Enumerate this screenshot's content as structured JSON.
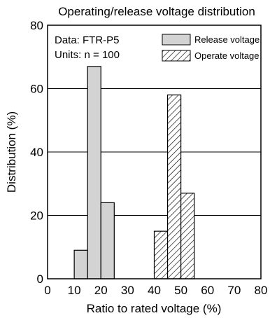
{
  "chart_data": {
    "type": "bar",
    "title": "Operating/release voltage distribution",
    "xlabel": "Ratio to rated voltage (%)",
    "ylabel": "Distribution (%)",
    "xlim": [
      0,
      80
    ],
    "ylim": [
      0,
      80
    ],
    "x_ticks": [
      "0",
      "10",
      "20",
      "30",
      "40",
      "50",
      "60",
      "70",
      "80"
    ],
    "y_ticks": [
      "0",
      "20",
      "40",
      "60",
      "80"
    ],
    "horizontal_grid": true,
    "bin_width": 5,
    "info_lines": [
      "Data: FTR-P5",
      "Units: n = 100"
    ],
    "legend_position": "top-right",
    "series": [
      {
        "name": "Release voltage",
        "fill": "#d3d3d3",
        "pattern": "solid",
        "bins": [
          {
            "x_start": 10,
            "x_end": 15,
            "value": 9
          },
          {
            "x_start": 15,
            "x_end": 20,
            "value": 67
          },
          {
            "x_start": 20,
            "x_end": 25,
            "value": 24
          }
        ]
      },
      {
        "name": "Operate voltage",
        "fill": "#ffffff",
        "pattern": "hatched",
        "bins": [
          {
            "x_start": 40,
            "x_end": 45,
            "value": 15
          },
          {
            "x_start": 45,
            "x_end": 50,
            "value": 58
          },
          {
            "x_start": 50,
            "x_end": 55,
            "value": 27
          }
        ]
      }
    ]
  }
}
